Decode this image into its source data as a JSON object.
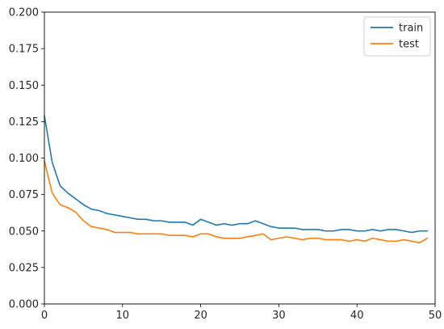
{
  "chart_data": {
    "type": "line",
    "title": "",
    "xlabel": "",
    "ylabel": "",
    "xlim": [
      0,
      50
    ],
    "ylim": [
      0,
      0.2
    ],
    "xticks": [
      0,
      10,
      20,
      30,
      40,
      50
    ],
    "xtick_labels": [
      "0",
      "10",
      "20",
      "30",
      "40",
      "50"
    ],
    "yticks": [
      0,
      0.025,
      0.05,
      0.075,
      0.1,
      0.125,
      0.15,
      0.175,
      0.2
    ],
    "ytick_labels": [
      "0.000",
      "0.025",
      "0.050",
      "0.075",
      "0.100",
      "0.125",
      "0.150",
      "0.175",
      "0.200"
    ],
    "grid": false,
    "legend": {
      "position": "top-right"
    },
    "x": [
      0,
      1,
      2,
      3,
      4,
      5,
      6,
      7,
      8,
      9,
      10,
      11,
      12,
      13,
      14,
      15,
      16,
      17,
      18,
      19,
      20,
      21,
      22,
      23,
      24,
      25,
      26,
      27,
      28,
      29,
      30,
      31,
      32,
      33,
      34,
      35,
      36,
      37,
      38,
      39,
      40,
      41,
      42,
      43,
      44,
      45,
      46,
      47,
      48,
      49
    ],
    "series": [
      {
        "name": "train",
        "color": "#1f77b4",
        "values": [
          0.129,
          0.097,
          0.081,
          0.076,
          0.072,
          0.068,
          0.065,
          0.064,
          0.062,
          0.061,
          0.06,
          0.059,
          0.058,
          0.058,
          0.057,
          0.057,
          0.056,
          0.056,
          0.056,
          0.054,
          0.058,
          0.056,
          0.054,
          0.055,
          0.054,
          0.055,
          0.055,
          0.057,
          0.055,
          0.053,
          0.052,
          0.052,
          0.052,
          0.051,
          0.051,
          0.051,
          0.05,
          0.05,
          0.051,
          0.051,
          0.05,
          0.05,
          0.051,
          0.05,
          0.051,
          0.051,
          0.05,
          0.049,
          0.05,
          0.05
        ]
      },
      {
        "name": "test",
        "color": "#ff7f0e",
        "values": [
          0.098,
          0.076,
          0.068,
          0.066,
          0.063,
          0.057,
          0.053,
          0.052,
          0.051,
          0.049,
          0.049,
          0.049,
          0.048,
          0.048,
          0.048,
          0.048,
          0.047,
          0.047,
          0.047,
          0.046,
          0.048,
          0.048,
          0.046,
          0.045,
          0.045,
          0.045,
          0.046,
          0.047,
          0.048,
          0.044,
          0.045,
          0.046,
          0.045,
          0.044,
          0.045,
          0.045,
          0.044,
          0.044,
          0.044,
          0.043,
          0.044,
          0.043,
          0.045,
          0.044,
          0.043,
          0.043,
          0.044,
          0.043,
          0.042,
          0.045
        ]
      }
    ]
  }
}
